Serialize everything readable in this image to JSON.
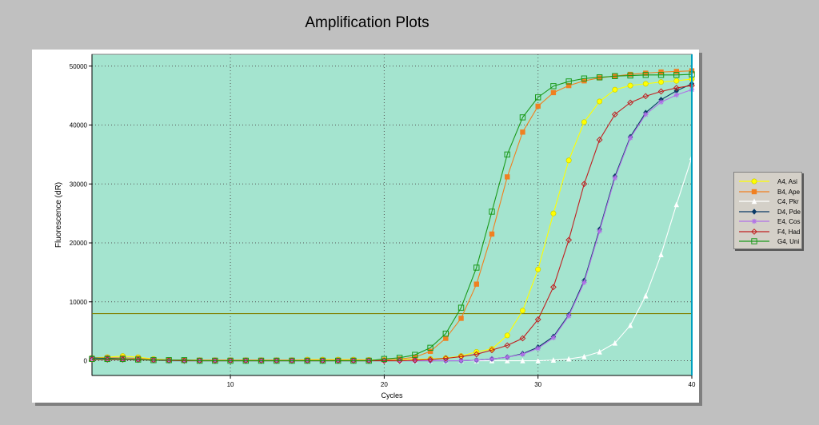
{
  "chart_data": {
    "type": "line",
    "title": "Amplification Plots",
    "xlabel": "Cycles",
    "ylabel": "Fluorescence (dR)",
    "xlim": [
      1,
      40
    ],
    "ylim": [
      -2500,
      52000
    ],
    "xticks": [
      10,
      20,
      30,
      40
    ],
    "yticks": [
      0,
      10000,
      20000,
      30000,
      40000,
      50000
    ],
    "grid": true,
    "legend_position": "right",
    "threshold": 8000,
    "background_color": "#a4e4cf",
    "threshold_color": "#808000",
    "series": [
      {
        "name": "A4, Asi",
        "color": "#ffff00",
        "marker": "circle",
        "x": [
          1,
          2,
          3,
          4,
          5,
          6,
          7,
          8,
          9,
          10,
          11,
          12,
          13,
          14,
          15,
          16,
          17,
          18,
          19,
          20,
          21,
          22,
          23,
          24,
          25,
          26,
          27,
          28,
          29,
          30,
          31,
          32,
          33,
          34,
          35,
          36,
          37,
          38,
          39,
          40
        ],
        "values": [
          500,
          600,
          800,
          600,
          300,
          150,
          100,
          100,
          100,
          100,
          100,
          100,
          100,
          100,
          200,
          200,
          200,
          200,
          150,
          150,
          200,
          250,
          300,
          450,
          800,
          1500,
          2000,
          4300,
          8500,
          15500,
          25000,
          34000,
          40500,
          44000,
          46000,
          46700,
          47000,
          47300,
          47500,
          47800
        ]
      },
      {
        "name": "B4, Ape",
        "color": "#f08020",
        "marker": "square",
        "x": [
          1,
          2,
          3,
          4,
          5,
          6,
          7,
          8,
          9,
          10,
          11,
          12,
          13,
          14,
          15,
          16,
          17,
          18,
          19,
          20,
          21,
          22,
          23,
          24,
          25,
          26,
          27,
          28,
          29,
          30,
          31,
          32,
          33,
          34,
          35,
          36,
          37,
          38,
          39,
          40
        ],
        "values": [
          400,
          500,
          500,
          400,
          200,
          150,
          100,
          100,
          100,
          100,
          100,
          100,
          100,
          100,
          100,
          100,
          100,
          100,
          100,
          100,
          300,
          600,
          1600,
          3800,
          7200,
          13000,
          21500,
          31200,
          38800,
          43200,
          45500,
          46700,
          47500,
          48000,
          48300,
          48600,
          48800,
          49000,
          49100,
          49200
        ]
      },
      {
        "name": "C4, Pkr",
        "color": "#ffffff",
        "marker": "triangle",
        "x": [
          1,
          2,
          3,
          4,
          5,
          6,
          7,
          8,
          9,
          10,
          11,
          12,
          13,
          14,
          15,
          16,
          17,
          18,
          19,
          20,
          21,
          22,
          23,
          24,
          25,
          26,
          27,
          28,
          29,
          30,
          31,
          32,
          33,
          34,
          35,
          36,
          37,
          38,
          39,
          40
        ],
        "values": [
          300,
          300,
          300,
          200,
          100,
          50,
          0,
          0,
          0,
          0,
          0,
          0,
          0,
          0,
          0,
          0,
          0,
          0,
          0,
          0,
          0,
          0,
          0,
          0,
          0,
          0,
          0,
          0,
          0,
          0,
          100,
          300,
          700,
          1500,
          3000,
          6000,
          11000,
          18000,
          26500,
          34500
        ]
      },
      {
        "name": "D4, Pde",
        "color": "#0a3a66",
        "marker": "diamond",
        "x": [
          1,
          2,
          3,
          4,
          5,
          6,
          7,
          8,
          9,
          10,
          11,
          12,
          13,
          14,
          15,
          16,
          17,
          18,
          19,
          20,
          21,
          22,
          23,
          24,
          25,
          26,
          27,
          28,
          29,
          30,
          31,
          32,
          33,
          34,
          35,
          36,
          37,
          38,
          39,
          40
        ],
        "values": [
          500,
          400,
          300,
          200,
          100,
          0,
          0,
          0,
          0,
          0,
          0,
          0,
          0,
          0,
          0,
          0,
          0,
          0,
          0,
          0,
          0,
          0,
          0,
          0,
          0,
          100,
          300,
          600,
          1200,
          2300,
          4100,
          7800,
          13600,
          22300,
          31300,
          38000,
          42100,
          44300,
          45800,
          47000
        ]
      },
      {
        "name": "E4, Cos",
        "color": "#b070e8",
        "marker": "star",
        "x": [
          1,
          2,
          3,
          4,
          5,
          6,
          7,
          8,
          9,
          10,
          11,
          12,
          13,
          14,
          15,
          16,
          17,
          18,
          19,
          20,
          21,
          22,
          23,
          24,
          25,
          26,
          27,
          28,
          29,
          30,
          31,
          32,
          33,
          34,
          35,
          36,
          37,
          38,
          39,
          40
        ],
        "values": [
          300,
          300,
          200,
          150,
          100,
          0,
          0,
          0,
          0,
          0,
          0,
          0,
          0,
          0,
          0,
          0,
          0,
          0,
          0,
          0,
          0,
          0,
          0,
          0,
          0,
          100,
          300,
          600,
          1100,
          2100,
          3900,
          7600,
          13300,
          22000,
          31000,
          37800,
          41800,
          43900,
          45100,
          46000
        ]
      },
      {
        "name": "F4, Had",
        "color": "#c02020",
        "marker": "diamond-open",
        "x": [
          1,
          2,
          3,
          4,
          5,
          6,
          7,
          8,
          9,
          10,
          11,
          12,
          13,
          14,
          15,
          16,
          17,
          18,
          19,
          20,
          21,
          22,
          23,
          24,
          25,
          26,
          27,
          28,
          29,
          30,
          31,
          32,
          33,
          34,
          35,
          36,
          37,
          38,
          39,
          40
        ],
        "values": [
          200,
          200,
          200,
          150,
          100,
          50,
          0,
          0,
          0,
          0,
          0,
          0,
          0,
          0,
          0,
          0,
          0,
          0,
          0,
          0,
          0,
          100,
          200,
          400,
          700,
          1100,
          1800,
          2600,
          3800,
          7000,
          12500,
          20500,
          30000,
          37500,
          41800,
          43800,
          44900,
          45700,
          46300,
          46700
        ]
      },
      {
        "name": "G4, Uni",
        "color": "#1a9a1a",
        "marker": "square-open",
        "x": [
          1,
          2,
          3,
          4,
          5,
          6,
          7,
          8,
          9,
          10,
          11,
          12,
          13,
          14,
          15,
          16,
          17,
          18,
          19,
          20,
          21,
          22,
          23,
          24,
          25,
          26,
          27,
          28,
          29,
          30,
          31,
          32,
          33,
          34,
          35,
          36,
          37,
          38,
          39,
          40
        ],
        "values": [
          300,
          300,
          300,
          200,
          100,
          100,
          100,
          0,
          0,
          0,
          0,
          0,
          0,
          0,
          0,
          0,
          0,
          0,
          0,
          300,
          500,
          1000,
          2200,
          4600,
          9000,
          15800,
          25300,
          35000,
          41300,
          44700,
          46600,
          47400,
          47900,
          48100,
          48300,
          48400,
          48500,
          48500,
          48500,
          48600
        ]
      }
    ]
  }
}
